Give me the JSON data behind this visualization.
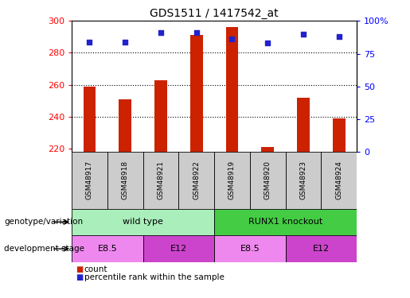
{
  "title": "GDS1511 / 1417542_at",
  "samples": [
    "GSM48917",
    "GSM48918",
    "GSM48921",
    "GSM48922",
    "GSM48919",
    "GSM48920",
    "GSM48923",
    "GSM48924"
  ],
  "counts": [
    259,
    251,
    263,
    291,
    296,
    221,
    252,
    239
  ],
  "percentiles": [
    84,
    84,
    91,
    91,
    86,
    83,
    90,
    88
  ],
  "y_min": 218,
  "y_max": 300,
  "y_ticks": [
    220,
    240,
    260,
    280,
    300
  ],
  "y2_ticks": [
    0,
    25,
    50,
    75,
    100
  ],
  "y2_labels": [
    "0",
    "25",
    "50",
    "75",
    "100%"
  ],
  "bar_color": "#cc2200",
  "dot_color": "#2222cc",
  "bar_bottom": 218,
  "groups": [
    {
      "label": "wild type",
      "start": 0,
      "end": 4,
      "color": "#aaeebb"
    },
    {
      "label": "RUNX1 knockout",
      "start": 4,
      "end": 8,
      "color": "#44cc44"
    }
  ],
  "stages": [
    {
      "label": "E8.5",
      "start": 0,
      "end": 2,
      "color": "#ee88ee"
    },
    {
      "label": "E12",
      "start": 2,
      "end": 4,
      "color": "#cc44cc"
    },
    {
      "label": "E8.5",
      "start": 4,
      "end": 6,
      "color": "#ee88ee"
    },
    {
      "label": "E12",
      "start": 6,
      "end": 8,
      "color": "#cc44cc"
    }
  ],
  "legend_count_color": "#cc2200",
  "legend_pct_color": "#2222cc",
  "genotype_label": "genotype/variation",
  "stage_label": "development stage",
  "sample_bg_color": "#cccccc",
  "bar_width": 0.35
}
